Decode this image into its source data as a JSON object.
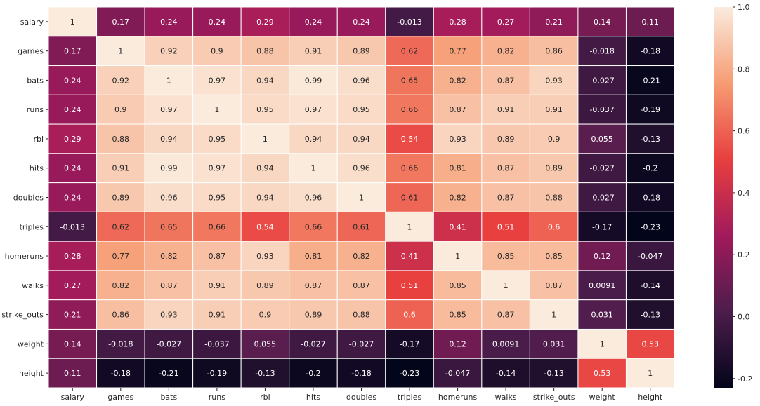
{
  "chart_data": {
    "type": "heatmap",
    "title": "",
    "xlabel": "",
    "ylabel": "",
    "rows": [
      "salary",
      "games",
      "bats",
      "runs",
      "rbi",
      "hits",
      "doubles",
      "triples",
      "homeruns",
      "walks",
      "strike_outs",
      "weight",
      "height"
    ],
    "columns": [
      "salary",
      "games",
      "bats",
      "runs",
      "rbi",
      "hits",
      "doubles",
      "triples",
      "homeruns",
      "walks",
      "strike_outs",
      "weight",
      "height"
    ],
    "values": [
      [
        1,
        0.17,
        0.24,
        0.24,
        0.29,
        0.24,
        0.24,
        -0.013,
        0.28,
        0.27,
        0.21,
        0.14,
        0.11
      ],
      [
        0.17,
        1,
        0.92,
        0.9,
        0.88,
        0.91,
        0.89,
        0.62,
        0.77,
        0.82,
        0.86,
        -0.018,
        -0.18
      ],
      [
        0.24,
        0.92,
        1,
        0.97,
        0.94,
        0.99,
        0.96,
        0.65,
        0.82,
        0.87,
        0.93,
        -0.027,
        -0.21
      ],
      [
        0.24,
        0.9,
        0.97,
        1,
        0.95,
        0.97,
        0.95,
        0.66,
        0.87,
        0.91,
        0.91,
        -0.037,
        -0.19
      ],
      [
        0.29,
        0.88,
        0.94,
        0.95,
        1,
        0.94,
        0.94,
        0.54,
        0.93,
        0.89,
        0.9,
        0.055,
        -0.13
      ],
      [
        0.24,
        0.91,
        0.99,
        0.97,
        0.94,
        1,
        0.96,
        0.66,
        0.81,
        0.87,
        0.89,
        -0.027,
        -0.2
      ],
      [
        0.24,
        0.89,
        0.96,
        0.95,
        0.94,
        0.96,
        1,
        0.61,
        0.82,
        0.87,
        0.88,
        -0.027,
        -0.18
      ],
      [
        -0.013,
        0.62,
        0.65,
        0.66,
        0.54,
        0.66,
        0.61,
        1,
        0.41,
        0.51,
        0.6,
        -0.17,
        -0.23
      ],
      [
        0.28,
        0.77,
        0.82,
        0.87,
        0.93,
        0.81,
        0.82,
        0.41,
        1,
        0.85,
        0.85,
        0.12,
        -0.047
      ],
      [
        0.27,
        0.82,
        0.87,
        0.91,
        0.89,
        0.87,
        0.87,
        0.51,
        0.85,
        1,
        0.87,
        0.0091,
        -0.14
      ],
      [
        0.21,
        0.86,
        0.93,
        0.91,
        0.9,
        0.89,
        0.88,
        0.6,
        0.85,
        0.87,
        1,
        0.031,
        -0.13
      ],
      [
        0.14,
        -0.018,
        -0.027,
        -0.037,
        0.055,
        -0.027,
        -0.027,
        -0.17,
        0.12,
        0.0091,
        0.031,
        1,
        0.53
      ],
      [
        0.11,
        -0.18,
        -0.21,
        -0.19,
        -0.13,
        -0.2,
        -0.18,
        -0.23,
        -0.047,
        -0.14,
        -0.13,
        0.53,
        1
      ]
    ],
    "value_range": [
      -0.23,
      1
    ],
    "colorbar": {
      "ticks": [
        -0.2,
        0.0,
        0.2,
        0.4,
        0.6,
        0.8,
        1.0
      ],
      "tick_labels": [
        "-0.2",
        "0.0",
        "0.2",
        "0.4",
        "0.6",
        "0.8",
        "1.0"
      ]
    },
    "colormap": [
      "#03051a",
      "#4c1d4b",
      "#a11a5b",
      "#e83f3f",
      "#f69c73",
      "#faebdd"
    ],
    "cell_border_color": "#ffffff",
    "grid": false,
    "legend": "colorbar-right"
  }
}
